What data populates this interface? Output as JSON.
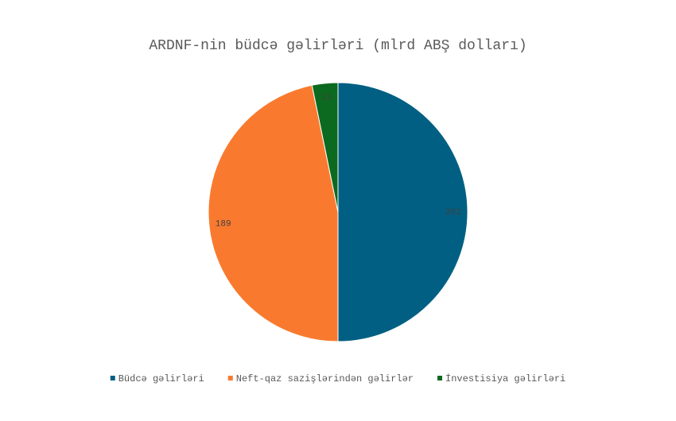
{
  "chart_data": {
    "type": "pie",
    "title": "ARDNF-nin büdcə gəlirləri (mlrd ABŞ dolları)",
    "categories": [
      "Büdcə gəlirləri",
      "Neft-qaz sazişlərindən gəlirlər",
      "İnvestisiya gəlirləri"
    ],
    "values": [
      202,
      189,
      13
    ],
    "colors": [
      "#005f83",
      "#f97a2f",
      "#0b6a1f"
    ],
    "legend": "bottom"
  }
}
